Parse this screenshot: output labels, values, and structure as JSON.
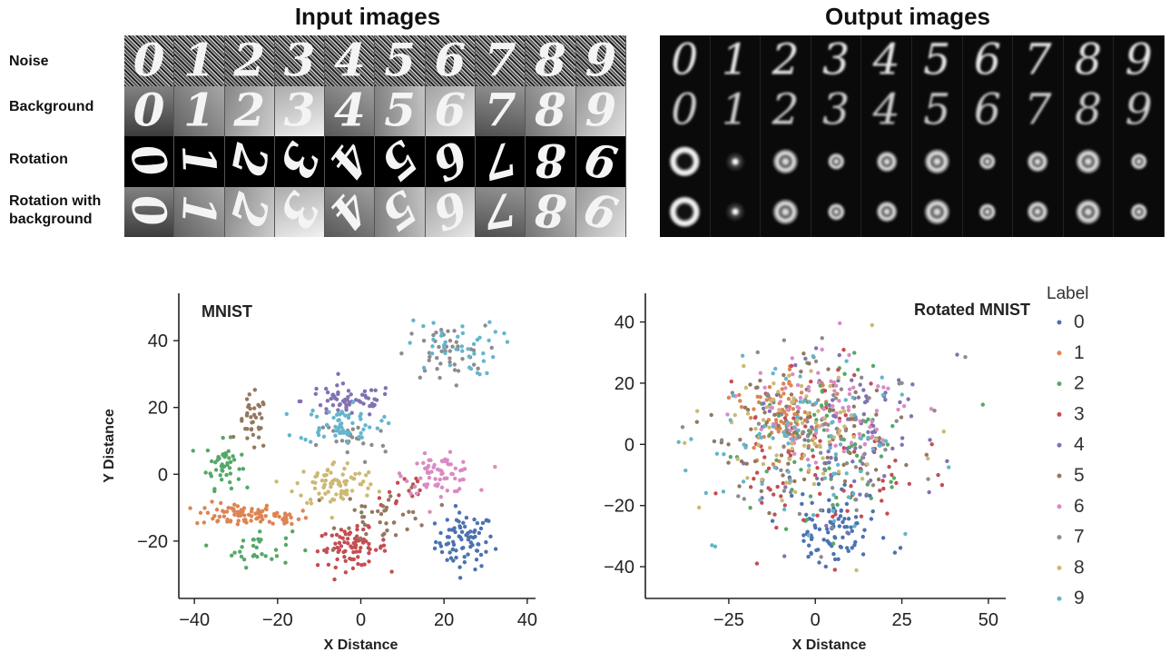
{
  "figure": {
    "input_title": "Input images",
    "output_title": "Output images",
    "row_labels": [
      "Noise",
      "Background",
      "Rotation",
      "Rotation with\nbackground"
    ],
    "digits": [
      "0",
      "1",
      "2",
      "3",
      "4",
      "5",
      "6",
      "7",
      "8",
      "9"
    ]
  },
  "chart_data": [
    {
      "type": "scatter",
      "title": "MNIST",
      "xlabel": "X Distance",
      "ylabel": "Y Distance",
      "xlim": [
        -42,
        42
      ],
      "ylim": [
        -35,
        52
      ],
      "xticks": [
        -40,
        -20,
        0,
        20,
        40
      ],
      "yticks": [
        -20,
        0,
        20,
        40
      ],
      "xtick_labels": [
        "−40",
        "−20",
        "0",
        "20",
        "40"
      ],
      "ytick_labels": [
        "−20",
        "0",
        "20",
        "40"
      ],
      "legend": "none",
      "series": [
        {
          "label": "0",
          "color": "#4c72b0",
          "clusters": [
            {
              "x": 25,
              "y": -20,
              "sx": 5,
              "sy": 6,
              "n": 80
            }
          ]
        },
        {
          "label": "1",
          "color": "#dd8452",
          "clusters": [
            {
              "x": -30,
              "y": -12,
              "sx": 7,
              "sy": 2.5,
              "n": 70
            },
            {
              "x": -18,
              "y": -13,
              "sx": 4,
              "sy": 2,
              "n": 25
            }
          ]
        },
        {
          "label": "2",
          "color": "#55a868",
          "clusters": [
            {
              "x": -33,
              "y": 3,
              "sx": 3,
              "sy": 5,
              "n": 45
            },
            {
              "x": -25,
              "y": -22,
              "sx": 6,
              "sy": 4,
              "n": 30
            }
          ]
        },
        {
          "label": "3",
          "color": "#c44e52",
          "clusters": [
            {
              "x": -2,
              "y": -22,
              "sx": 6,
              "sy": 4,
              "n": 80
            },
            {
              "x": 10,
              "y": -5,
              "sx": 5,
              "sy": 5,
              "n": 15
            }
          ]
        },
        {
          "label": "4",
          "color": "#8172b3",
          "clusters": [
            {
              "x": -3,
              "y": 22,
              "sx": 8,
              "sy": 3.5,
              "n": 60
            }
          ]
        },
        {
          "label": "5",
          "color": "#937860",
          "clusters": [
            {
              "x": -26,
              "y": 15,
              "sx": 2.5,
              "sy": 6,
              "n": 35
            },
            {
              "x": 6,
              "y": -12,
              "sx": 8,
              "sy": 6,
              "n": 40
            }
          ]
        },
        {
          "label": "6",
          "color": "#da8bc3",
          "clusters": [
            {
              "x": 19,
              "y": 0,
              "sx": 6,
              "sy": 4,
              "n": 70
            }
          ]
        },
        {
          "label": "7",
          "color": "#8c8c8c",
          "clusters": [
            {
              "x": 20,
              "y": 36,
              "sx": 7,
              "sy": 6,
              "n": 45
            },
            {
              "x": -2,
              "y": 10,
              "sx": 6,
              "sy": 5,
              "n": 25
            }
          ]
        },
        {
          "label": "8",
          "color": "#ccb974",
          "clusters": [
            {
              "x": -6,
              "y": -3,
              "sx": 7,
              "sy": 5,
              "n": 80
            }
          ]
        },
        {
          "label": "9",
          "color": "#64b5cd",
          "clusters": [
            {
              "x": -5,
              "y": 15,
              "sx": 7,
              "sy": 4,
              "n": 60
            },
            {
              "x": 22,
              "y": 38,
              "sx": 8,
              "sy": 6,
              "n": 40
            }
          ]
        }
      ]
    },
    {
      "type": "scatter",
      "title": "Rotated MNIST",
      "xlabel": "X Distance",
      "ylabel": "",
      "xlim": [
        -47,
        55
      ],
      "ylim": [
        -48,
        47
      ],
      "xticks": [
        -25,
        0,
        25,
        50
      ],
      "yticks": [
        -40,
        -20,
        0,
        20,
        40
      ],
      "xtick_labels": [
        "−25",
        "0",
        "25",
        "50"
      ],
      "ytick_labels": [
        "−40",
        "−20",
        "0",
        "20",
        "40"
      ],
      "legend": "right",
      "legend_title": "Label",
      "series": [
        {
          "label": "0",
          "color": "#4c72b0",
          "clusters": [
            {
              "x": 5,
              "y": -28,
              "sx": 10,
              "sy": 8,
              "n": 90
            }
          ]
        },
        {
          "label": "1",
          "color": "#dd8452",
          "clusters": [
            {
              "x": -8,
              "y": 8,
              "sx": 9,
              "sy": 10,
              "n": 90
            }
          ]
        },
        {
          "label": "2",
          "color": "#55a868",
          "clusters": [
            {
              "x": 2,
              "y": 0,
              "sx": 20,
              "sy": 20,
              "n": 80
            }
          ]
        },
        {
          "label": "3",
          "color": "#c44e52",
          "clusters": [
            {
              "x": 5,
              "y": -5,
              "sx": 20,
              "sy": 20,
              "n": 90
            }
          ]
        },
        {
          "label": "4",
          "color": "#8172b3",
          "clusters": [
            {
              "x": 10,
              "y": 5,
              "sx": 18,
              "sy": 18,
              "n": 80
            }
          ]
        },
        {
          "label": "5",
          "color": "#937860",
          "clusters": [
            {
              "x": -5,
              "y": 5,
              "sx": 20,
              "sy": 18,
              "n": 80
            }
          ]
        },
        {
          "label": "6",
          "color": "#da8bc3",
          "clusters": [
            {
              "x": 3,
              "y": 10,
              "sx": 18,
              "sy": 16,
              "n": 80
            }
          ]
        },
        {
          "label": "7",
          "color": "#8c8c8c",
          "clusters": [
            {
              "x": 0,
              "y": 0,
              "sx": 22,
              "sy": 20,
              "n": 70
            }
          ]
        },
        {
          "label": "8",
          "color": "#ccb974",
          "clusters": [
            {
              "x": -5,
              "y": 5,
              "sx": 18,
              "sy": 18,
              "n": 80
            }
          ]
        },
        {
          "label": "9",
          "color": "#64b5cd",
          "clusters": [
            {
              "x": 0,
              "y": 0,
              "sx": 22,
              "sy": 20,
              "n": 80
            }
          ]
        }
      ]
    }
  ]
}
